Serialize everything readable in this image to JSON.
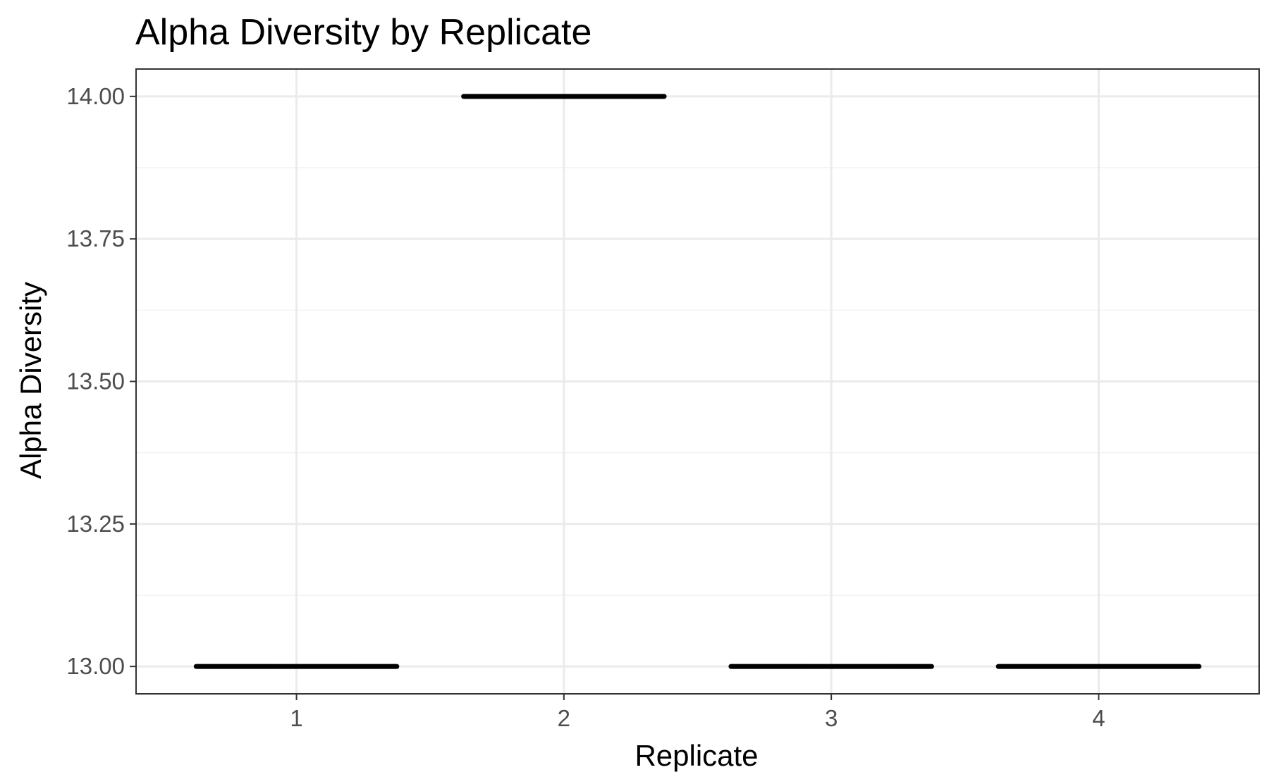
{
  "chart_data": {
    "type": "boxplot",
    "title": "Alpha Diversity by Replicate",
    "xlabel": "Replicate",
    "ylabel": "Alpha Diversity",
    "categories": [
      "1",
      "2",
      "3",
      "4"
    ],
    "values": [
      13,
      14,
      13,
      13
    ],
    "ylim": [
      12.952,
      14.048
    ],
    "yticks": [
      13.0,
      13.25,
      13.5,
      13.75,
      14.0
    ],
    "ytick_labels": [
      "13.00",
      "13.25",
      "13.50",
      "13.75",
      "14.00"
    ],
    "grid": true,
    "legend": "none",
    "colors": {
      "mark": "#000000",
      "grid_major": "#ebebeb",
      "grid_minor": "#f2f2f2",
      "panel_border": "#333333",
      "tick_text": "#4d4d4d",
      "tick_mark": "#333333"
    }
  }
}
